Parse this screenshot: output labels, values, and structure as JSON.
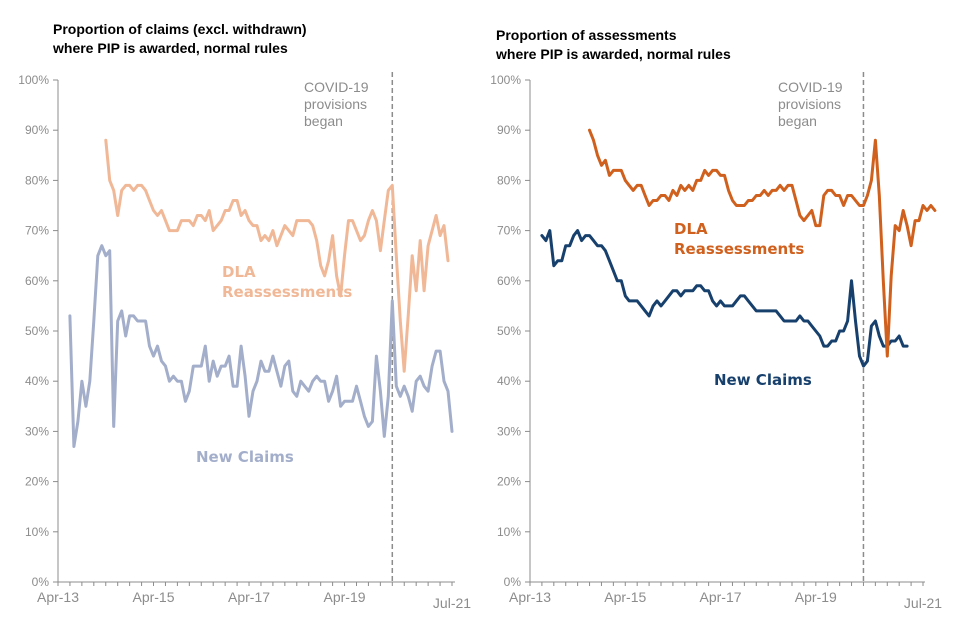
{
  "chart_data": [
    {
      "type": "line",
      "title": "Proportion of claims (excl. withdrawn)\nwhere PIP is awarded, normal rules",
      "xlabel": "",
      "ylabel": "",
      "ylim": [
        0,
        100
      ],
      "yticks": [
        "0%",
        "10%",
        "20%",
        "30%",
        "40%",
        "50%",
        "60%",
        "70%",
        "80%",
        "90%",
        "100%"
      ],
      "xticks": [
        {
          "label": "Apr-13",
          "month_index": 0
        },
        {
          "label": "Apr-15",
          "month_index": 24
        },
        {
          "label": "Apr-17",
          "month_index": 48
        },
        {
          "label": "Apr-19",
          "month_index": 72
        },
        {
          "label": "Jul-21",
          "month_index": 99
        }
      ],
      "x_start": "Apr-13",
      "x_end": "Jul-21",
      "x_unit": "month",
      "grid": false,
      "annotation": {
        "text": "COVID-19\nprovisions\nbegan",
        "month_index": 84
      },
      "series": [
        {
          "name": "New Claims",
          "label": "New Claims",
          "color": "#a3aecb",
          "start_month_index": 3,
          "values": [
            53,
            27,
            32,
            40,
            35,
            40,
            52,
            65,
            67,
            65,
            66,
            31,
            52,
            54,
            49,
            53,
            53,
            52,
            52,
            52,
            47,
            45,
            47,
            44,
            43,
            40,
            41,
            40,
            40,
            36,
            38,
            43,
            43,
            43,
            47,
            40,
            44,
            41,
            43,
            43,
            45,
            39,
            39,
            47,
            41,
            33,
            38,
            40,
            44,
            42,
            42,
            45,
            42,
            39,
            43,
            44,
            38,
            37,
            40,
            39,
            38,
            40,
            41,
            40,
            40,
            36,
            38,
            41,
            35,
            36,
            36,
            36,
            39,
            36,
            33,
            31,
            32,
            45,
            38,
            29,
            37,
            56,
            39,
            37,
            39,
            37,
            34,
            40,
            41,
            39,
            38,
            43,
            46,
            46,
            40,
            38,
            30
          ],
          "trailing_null": true
        },
        {
          "name": "DLA Reassessments",
          "label": "DLA\nReassessments",
          "color": "#f0b896",
          "start_month_index": 12,
          "values": [
            88,
            80,
            78,
            73,
            78,
            79,
            79,
            78,
            79,
            79,
            78,
            76,
            74,
            73,
            74,
            72,
            70,
            70,
            70,
            72,
            72,
            72,
            71,
            73,
            73,
            72,
            74,
            70,
            71,
            72,
            74,
            74,
            76,
            76,
            73,
            74,
            72,
            71,
            71,
            68,
            69,
            68,
            70,
            67,
            69,
            71,
            70,
            69,
            72,
            72,
            72,
            72,
            71,
            68,
            63,
            61,
            64,
            69,
            61,
            57,
            65,
            72,
            72,
            70,
            68,
            69,
            72,
            74,
            72,
            66,
            72,
            78,
            79,
            65,
            52,
            42,
            53,
            65,
            58,
            68,
            58,
            67,
            70,
            73,
            69,
            71,
            64
          ],
          "note": "values read approximately from pixels"
        }
      ]
    },
    {
      "type": "line",
      "title": "Proportion of assessments\nwhere PIP is awarded, normal rules",
      "xlabel": "",
      "ylabel": "",
      "ylim": [
        0,
        100
      ],
      "yticks": [
        "0%",
        "10%",
        "20%",
        "30%",
        "40%",
        "50%",
        "60%",
        "70%",
        "80%",
        "90%",
        "100%"
      ],
      "xticks": [
        {
          "label": "Apr-13",
          "month_index": 0
        },
        {
          "label": "Apr-15",
          "month_index": 24
        },
        {
          "label": "Apr-17",
          "month_index": 48
        },
        {
          "label": "Apr-19",
          "month_index": 72
        },
        {
          "label": "Jul-21",
          "month_index": 99
        }
      ],
      "x_start": "Apr-13",
      "x_end": "Jul-21",
      "x_unit": "month",
      "grid": false,
      "annotation": {
        "text": "COVID-19\nprovisions\nbegan",
        "month_index": 84
      },
      "series": [
        {
          "name": "New Claims",
          "label": "New Claims",
          "color": "#17406d",
          "start_month_index": 3,
          "values": [
            69,
            68,
            70,
            63,
            64,
            64,
            67,
            67,
            69,
            70,
            68,
            69,
            69,
            68,
            67,
            67,
            66,
            64,
            62,
            60,
            60,
            57,
            56,
            56,
            56,
            55,
            54,
            53,
            55,
            56,
            55,
            56,
            57,
            58,
            58,
            57,
            58,
            58,
            58,
            59,
            59,
            58,
            58,
            56,
            55,
            56,
            55,
            55,
            55,
            56,
            57,
            57,
            56,
            55,
            54,
            54,
            54,
            54,
            54,
            54,
            53,
            52,
            52,
            52,
            52,
            53,
            52,
            52,
            51,
            50,
            49,
            47,
            47,
            48,
            48,
            50,
            50,
            52,
            60,
            52,
            45,
            43,
            44,
            51,
            52,
            49,
            47,
            47,
            48,
            48,
            49,
            47,
            47
          ],
          "note": "values read approximately from pixels"
        },
        {
          "name": "DLA Reassessments",
          "label": "DLA\nReassessments",
          "color": "#d0601d",
          "start_month_index": 15,
          "values": [
            90,
            88,
            85,
            83,
            84,
            81,
            82,
            82,
            82,
            80,
            79,
            78,
            79,
            79,
            77,
            75,
            76,
            76,
            77,
            77,
            76,
            78,
            77,
            79,
            78,
            79,
            78,
            80,
            80,
            82,
            81,
            82,
            82,
            81,
            81,
            78,
            76,
            75,
            75,
            75,
            76,
            76,
            77,
            77,
            78,
            77,
            78,
            78,
            79,
            78,
            79,
            79,
            76,
            73,
            72,
            73,
            74,
            71,
            71,
            77,
            78,
            78,
            77,
            77,
            75,
            77,
            77,
            76,
            75,
            75,
            77,
            80,
            88,
            77,
            60,
            45,
            61,
            71,
            70,
            74,
            71,
            67,
            72,
            72,
            75,
            74,
            75,
            74
          ],
          "note": "values read approximately from pixels"
        }
      ]
    }
  ]
}
